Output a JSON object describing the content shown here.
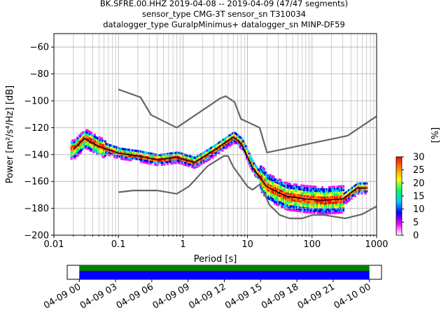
{
  "header": {
    "line1": "BK.SFRE.00.HHZ   2019-04-08 -- 2019-04-09  (47/47 segments)",
    "line2": "sensor_type CMG-3T sensor_sn T310034",
    "line3": "datalogger_type GuralpMinimus+ datalogger_sn MINP-DF59"
  },
  "chart_data": [
    {
      "type": "heatmap",
      "subtype": "probabilistic power spectral density",
      "xlabel": "Period [s]",
      "ylabel": "Power [m²/s⁴/Hz] [dB]",
      "x_scale": "log",
      "xlim": [
        0.01,
        1000
      ],
      "ylim": [
        -200,
        -50
      ],
      "x_ticks": [
        0.01,
        0.1,
        1,
        10,
        100,
        1000
      ],
      "x_tick_labels": [
        "0.01",
        "0.1",
        "1",
        "10",
        "100",
        "1000"
      ],
      "y_ticks": [
        -200,
        -180,
        -160,
        -140,
        -120,
        -100,
        -80,
        -60
      ],
      "y_tick_labels": [
        "−200",
        "−180",
        "−160",
        "−140",
        "−120",
        "−100",
        "−80",
        "−60"
      ],
      "grid": true,
      "series": [
        {
          "name": "mean",
          "color": "#000000",
          "x": [
            0.02,
            0.03,
            0.05,
            0.1,
            0.2,
            0.4,
            0.8,
            1.5,
            3,
            6,
            8,
            12,
            20,
            40,
            80,
            150,
            300,
            500,
            700
          ],
          "y": [
            -136,
            -128,
            -134,
            -139,
            -141,
            -144,
            -142,
            -146,
            -137,
            -127,
            -132,
            -150,
            -164,
            -171,
            -173,
            -174,
            -173,
            -165,
            -165
          ]
        },
        {
          "name": "new high noise model",
          "color": "#666666",
          "x": [
            0.1,
            0.22,
            0.32,
            0.8,
            3.8,
            4.6,
            6.3,
            7.9,
            15.4,
            20,
            354.8,
            1000
          ],
          "y": [
            -91.5,
            -97.4,
            -110.5,
            -120,
            -98,
            -96.5,
            -101,
            -113.5,
            -120,
            -138.5,
            -126,
            -111.5
          ]
        },
        {
          "name": "new low noise model",
          "color": "#666666",
          "x": [
            0.1,
            0.17,
            0.4,
            0.8,
            1.24,
            2.4,
            4.3,
            5,
            6,
            10,
            12,
            15.6,
            21.9,
            31.6,
            45,
            70,
            101,
            154,
            328,
            600,
            1000
          ],
          "y": [
            -168,
            -166.7,
            -166.7,
            -169.2,
            -163.7,
            -148.6,
            -141.1,
            -141.1,
            -149,
            -163.8,
            -166.2,
            -162.1,
            -177.5,
            -185,
            -187.5,
            -187.5,
            -185,
            -185,
            -187.5,
            -184.4,
            -178.5
          ]
        }
      ],
      "colorbar": {
        "label": "[%]",
        "min": 0,
        "max": 30,
        "ticks": [
          "0",
          "5",
          "10",
          "15",
          "20",
          "25",
          "30"
        ],
        "colors": [
          "#ffffff",
          "#ff00ff",
          "#0000ff",
          "#00ccff",
          "#00ff66",
          "#ffff00",
          "#ff8800",
          "#ff0000"
        ]
      }
    },
    {
      "type": "bar",
      "subtype": "data coverage timeline",
      "x_tick_labels": [
        "04-09 00",
        "04-09 03",
        "04-09 06",
        "04-09 09",
        "04-09 12",
        "04-09 15",
        "04-09 18",
        "04-09 21",
        "04-10 00"
      ],
      "x_range_hours": [
        -1,
        25
      ],
      "coverage_hours": [
        0,
        24
      ],
      "colors": {
        "used": "#008000",
        "available": "#0000ff"
      }
    }
  ]
}
